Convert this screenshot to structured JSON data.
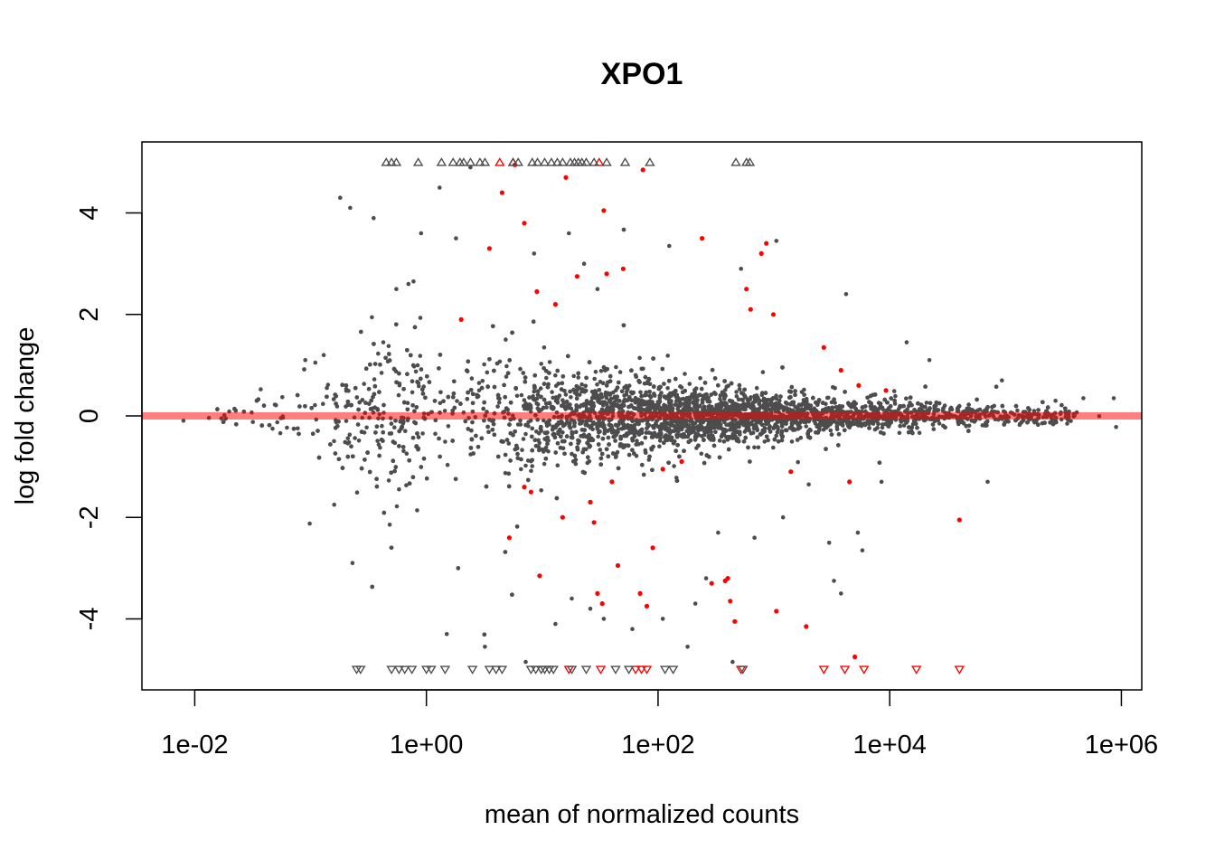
{
  "chart_data": {
    "type": "scatter",
    "title": "XPO1",
    "xlabel": "mean of normalized counts",
    "ylabel": "log fold change",
    "x_scale": "log10",
    "xlim": [
      0.0035,
      1500000
    ],
    "ylim": [
      -5.4,
      5.4
    ],
    "x_ticks": [
      {
        "value": 0.01,
        "label": "1e-02"
      },
      {
        "value": 1,
        "label": "1e+00"
      },
      {
        "value": 100,
        "label": "1e+02"
      },
      {
        "value": 10000,
        "label": "1e+04"
      },
      {
        "value": 1000000,
        "label": "1e+06"
      }
    ],
    "y_ticks": [
      {
        "value": -4,
        "label": "-4"
      },
      {
        "value": -2,
        "label": "-2"
      },
      {
        "value": 0,
        "label": "0"
      },
      {
        "value": 2,
        "label": "2"
      },
      {
        "value": 4,
        "label": "4"
      }
    ],
    "reference_line": {
      "y": 0,
      "color": "#ff000080"
    },
    "grid": false,
    "legend": "none",
    "colors": {
      "non_significant": "#4d4d4d",
      "significant": "#ff0000",
      "reference_line": "#ff0000"
    },
    "point_cloud": {
      "description_kind": "MA plot of ~20000 genes",
      "segments": [
        {
          "x": 0.008,
          "lfc_spread": 0.03
        },
        {
          "x": 0.02,
          "lfc_spread": 0.08
        },
        {
          "x": 0.05,
          "lfc_spread": 0.2
        },
        {
          "x": 0.15,
          "lfc_spread": 0.45
        },
        {
          "x": 0.5,
          "lfc_spread": 0.75
        },
        {
          "x": 2,
          "lfc_spread": 0.7
        },
        {
          "x": 10,
          "lfc_spread": 0.5
        },
        {
          "x": 100,
          "lfc_spread": 0.32
        },
        {
          "x": 1000,
          "lfc_spread": 0.22
        },
        {
          "x": 10000,
          "lfc_spread": 0.15
        },
        {
          "x": 100000,
          "lfc_spread": 0.1
        },
        {
          "x": 1000000,
          "lfc_spread": 0.08
        }
      ]
    },
    "series": [
      {
        "color": "#ff0000",
        "values": [
          [
            4.5,
            4.4
          ],
          [
            5.8,
            4.95
          ],
          [
            7,
            3.8
          ],
          [
            16,
            4.7
          ],
          [
            34,
            4.05
          ],
          [
            36,
            2.8
          ],
          [
            50,
            2.9
          ],
          [
            74,
            4.85
          ],
          [
            240,
            3.5
          ],
          [
            580,
            2.5
          ],
          [
            630,
            2.1
          ],
          [
            780,
            3.2
          ],
          [
            860,
            3.4
          ],
          [
            990,
            2.0
          ],
          [
            3.5,
            3.3
          ],
          [
            9,
            2.45
          ],
          [
            13,
            2.2
          ],
          [
            20,
            2.75
          ],
          [
            2,
            1.9
          ],
          [
            2700,
            1.35
          ],
          [
            3800,
            0.9
          ],
          [
            5400,
            0.6
          ],
          [
            9300,
            0.5
          ],
          [
            110,
            -1.05
          ],
          [
            160,
            -0.9
          ],
          [
            40,
            -1.3
          ],
          [
            8,
            -1.5
          ],
          [
            7,
            -1.4
          ],
          [
            15,
            -2.0
          ],
          [
            28,
            -2.1
          ],
          [
            30,
            -3.5
          ],
          [
            33,
            -3.7
          ],
          [
            45,
            -2.95
          ],
          [
            70,
            -3.5
          ],
          [
            80,
            -3.75
          ],
          [
            90,
            -2.6
          ],
          [
            290,
            -3.3
          ],
          [
            380,
            -3.25
          ],
          [
            400,
            -3.2
          ],
          [
            420,
            -3.65
          ],
          [
            460,
            -4.05
          ],
          [
            1050,
            -3.85
          ],
          [
            1900,
            -4.15
          ],
          [
            5000,
            -4.75
          ],
          [
            40000,
            -2.05
          ],
          [
            1400,
            -1.1
          ],
          [
            4500,
            -1.3
          ],
          [
            5.2,
            -2.4
          ],
          [
            9.5,
            -3.15
          ],
          [
            26,
            -1.7
          ]
        ]
      },
      {
        "color": "#ff0000",
        "values": [
          [
            4.3,
            5.0
          ],
          [
            5.6,
            5.0
          ],
          [
            31,
            5.0
          ],
          [
            17,
            -5.0
          ],
          [
            32,
            -5.0
          ],
          [
            64,
            -5.0
          ],
          [
            72,
            -5.0
          ],
          [
            80,
            -5.0
          ],
          [
            520,
            -5.0
          ],
          [
            2700,
            -5.0
          ],
          [
            4100,
            -5.0
          ],
          [
            6000,
            -5.0
          ],
          [
            17000,
            -5.0
          ],
          [
            40000,
            -5.0
          ]
        ]
      },
      {
        "color": "#4d4d4d",
        "values": [
          [
            0.45,
            5.0
          ],
          [
            0.5,
            5.0
          ],
          [
            0.55,
            5.0
          ],
          [
            0.85,
            5.0
          ],
          [
            1.35,
            5.0
          ],
          [
            1.7,
            5.0
          ],
          [
            1.95,
            5.0
          ],
          [
            2.1,
            5.0
          ],
          [
            2.4,
            5.0
          ],
          [
            2.9,
            5.0
          ],
          [
            3.2,
            5.0
          ],
          [
            5.6,
            5.0
          ],
          [
            8.2,
            5.0
          ],
          [
            9.1,
            5.0
          ],
          [
            12,
            5.0
          ],
          [
            13.5,
            5.0
          ],
          [
            15,
            5.0
          ],
          [
            17.5,
            5.0
          ],
          [
            19,
            5.0
          ],
          [
            20.5,
            5.0
          ],
          [
            22,
            5.0
          ],
          [
            24,
            5.0
          ],
          [
            28,
            5.0
          ],
          [
            36,
            5.0
          ],
          [
            52,
            5.0
          ],
          [
            85,
            5.0
          ],
          [
            470,
            5.0
          ],
          [
            580,
            5.0
          ],
          [
            620,
            5.0
          ],
          [
            6.2,
            5.0
          ],
          [
            10.5,
            5.0
          ],
          [
            0.25,
            -5.0
          ],
          [
            0.27,
            -5.0
          ],
          [
            0.5,
            -5.0
          ],
          [
            0.58,
            -5.0
          ],
          [
            0.65,
            -5.0
          ],
          [
            0.75,
            -5.0
          ],
          [
            1,
            -5.0
          ],
          [
            1.1,
            -5.0
          ],
          [
            1.45,
            -5.0
          ],
          [
            2.5,
            -5.0
          ],
          [
            3.5,
            -5.0
          ],
          [
            4,
            -5.0
          ],
          [
            4.5,
            -5.0
          ],
          [
            8,
            -5.0
          ],
          [
            8.8,
            -5.0
          ],
          [
            9.8,
            -5.0
          ],
          [
            10.5,
            -5.0
          ],
          [
            11.5,
            -5.0
          ],
          [
            12.5,
            -5.0
          ],
          [
            18,
            -5.0
          ],
          [
            24,
            -5.0
          ],
          [
            43,
            -5.0
          ],
          [
            56,
            -5.0
          ],
          [
            115,
            -5.0
          ],
          [
            135,
            -5.0
          ],
          [
            540,
            -5.0
          ]
        ]
      },
      {
        "color": "#4d4d4d",
        "values": [
          [
            0.7,
            2.6
          ],
          [
            0.18,
            4.3
          ],
          [
            0.22,
            4.1
          ],
          [
            0.35,
            3.9
          ],
          [
            0.9,
            3.6
          ],
          [
            1.3,
            4.5
          ],
          [
            2.4,
            4.9
          ],
          [
            1.8,
            3.5
          ],
          [
            8.5,
            3.2
          ],
          [
            17,
            3.6
          ],
          [
            23,
            3.0
          ],
          [
            30,
            2.5
          ],
          [
            125,
            3.35
          ],
          [
            520,
            2.9
          ],
          [
            1050,
            3.45
          ],
          [
            4200,
            2.4
          ],
          [
            0.09,
            1.1
          ],
          [
            0.11,
            1.05
          ],
          [
            0.13,
            1.2
          ],
          [
            0.16,
            -1.75
          ],
          [
            0.23,
            -2.9
          ],
          [
            0.55,
            2.5
          ],
          [
            1.5,
            -4.3
          ],
          [
            3.2,
            -4.55
          ],
          [
            7.2,
            -4.85
          ],
          [
            13,
            -4.1
          ],
          [
            18,
            -3.6
          ],
          [
            26,
            -3.8
          ],
          [
            34,
            -4.0
          ],
          [
            60,
            -4.2
          ],
          [
            110,
            -4.0
          ],
          [
            180,
            -4.55
          ],
          [
            210,
            -3.7
          ],
          [
            260,
            -3.2
          ],
          [
            330,
            -2.3
          ],
          [
            440,
            -4.85
          ],
          [
            680,
            -2.4
          ],
          [
            1200,
            -2.0
          ],
          [
            2000,
            -1.35
          ],
          [
            3000,
            -2.5
          ],
          [
            3300,
            -3.25
          ],
          [
            3800,
            -3.5
          ],
          [
            5300,
            -2.3
          ],
          [
            5800,
            -2.65
          ],
          [
            8500,
            -1.3
          ],
          [
            14000,
            1.45
          ],
          [
            22000,
            1.1
          ],
          [
            70000,
            -1.3
          ],
          [
            93000,
            0.7
          ],
          [
            270000,
            0.3
          ],
          [
            470000,
            0.35
          ],
          [
            860000,
            0.35
          ],
          [
            900000,
            -0.22
          ]
        ]
      }
    ]
  }
}
